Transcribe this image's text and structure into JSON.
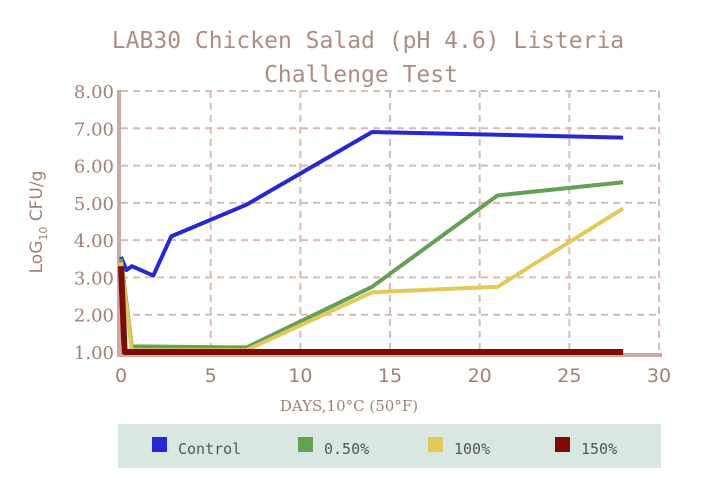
{
  "chart_data": {
    "type": "line",
    "title_line1": "LAB30 Chicken Salad (pH 4.6) Listeria",
    "title_line2": "Challenge Test",
    "xlabel": "DAYS,10°C (50°F)",
    "ylabel_prefix": "LoG",
    "ylabel_sub": "10",
    "ylabel_suffix": " CFU/g",
    "xlim": [
      0,
      30
    ],
    "ylim": [
      1.0,
      8.0
    ],
    "x_ticks": [
      "0",
      "5",
      "10",
      "15",
      "20",
      "25",
      "30"
    ],
    "y_ticks": [
      "1.00",
      "2.00",
      "3.00",
      "4.00",
      "5.00",
      "6.00",
      "7.00",
      "8.00"
    ],
    "grid": true,
    "legend_position": "bottom",
    "series": [
      {
        "name": "Control",
        "color": "#2828d2",
        "points": [
          [
            0,
            3.55
          ],
          [
            0.3,
            3.2
          ],
          [
            0.6,
            3.3
          ],
          [
            1.8,
            3.05
          ],
          [
            2.8,
            4.1
          ],
          [
            7,
            4.95
          ],
          [
            14,
            6.9
          ],
          [
            28,
            6.75
          ]
        ]
      },
      {
        "name": "0.50%",
        "color": "#65a055",
        "points": [
          [
            0,
            3.5
          ],
          [
            0.6,
            1.15
          ],
          [
            7,
            1.12
          ],
          [
            14,
            2.75
          ],
          [
            21,
            5.2
          ],
          [
            28,
            5.55
          ]
        ]
      },
      {
        "name": "100%",
        "color": "#e3c85a",
        "points": [
          [
            0,
            3.4
          ],
          [
            0.6,
            1.05
          ],
          [
            7,
            1.05
          ],
          [
            14,
            2.6
          ],
          [
            21,
            2.75
          ],
          [
            28,
            4.85
          ]
        ]
      },
      {
        "name": "150%",
        "color": "#7c0c04",
        "points": [
          [
            0,
            3.3
          ],
          [
            0.2,
            1.0
          ],
          [
            28,
            1.0
          ]
        ]
      }
    ]
  }
}
